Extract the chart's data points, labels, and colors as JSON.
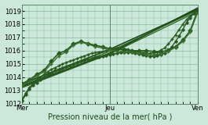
{
  "title": "",
  "xlabel": "Pression niveau de la mer( hPa )",
  "ylabel": "",
  "bg_color": "#cce8da",
  "plot_bg_color": "#cce8da",
  "grid_color": "#88b89a",
  "ylim": [
    1012,
    1019.5
  ],
  "xlim": [
    0,
    48
  ],
  "yticks": [
    1012,
    1013,
    1014,
    1015,
    1016,
    1017,
    1018,
    1019
  ],
  "xtick_positions": [
    0,
    24,
    48
  ],
  "xtick_labels": [
    "Mer",
    "Jeu",
    "Ven"
  ],
  "series": [
    {
      "x": [
        0,
        1,
        2,
        3,
        4,
        5,
        6,
        7,
        8,
        9,
        10,
        11,
        12,
        13,
        14,
        15,
        16,
        17,
        18,
        19,
        20,
        21,
        22,
        23,
        24,
        25,
        26,
        27,
        28,
        29,
        30,
        31,
        32,
        33,
        34,
        35,
        36,
        37,
        38,
        39,
        40,
        41,
        42,
        43,
        44,
        45,
        46,
        47,
        48
      ],
      "y": [
        1012.2,
        1012.7,
        1013.1,
        1013.4,
        1013.6,
        1013.8,
        1014.0,
        1014.2,
        1014.3,
        1014.5,
        1014.6,
        1014.7,
        1014.8,
        1014.9,
        1015.0,
        1015.1,
        1015.2,
        1015.3,
        1015.35,
        1015.4,
        1015.5,
        1015.55,
        1015.6,
        1015.65,
        1015.7,
        1015.75,
        1015.8,
        1015.85,
        1015.9,
        1015.9,
        1015.85,
        1015.8,
        1015.75,
        1015.7,
        1015.65,
        1015.6,
        1015.6,
        1015.65,
        1015.7,
        1015.8,
        1016.0,
        1016.3,
        1016.7,
        1017.1,
        1017.6,
        1018.1,
        1018.5,
        1018.8,
        1019.1
      ],
      "color": "#2a5a22",
      "lw": 1.0,
      "marker": "D",
      "ms": 1.8,
      "zorder": 3
    },
    {
      "x": [
        0,
        1,
        2,
        3,
        4,
        5,
        6,
        7,
        8,
        9,
        10,
        11,
        12,
        13,
        14,
        15,
        16,
        17,
        18,
        19,
        20,
        21,
        22,
        23,
        24,
        25,
        26,
        27,
        28,
        29,
        30,
        31,
        32,
        33,
        34,
        35,
        36,
        37,
        38,
        39,
        40,
        41,
        42,
        43,
        44,
        45,
        46,
        47,
        48
      ],
      "y": [
        1012.3,
        1012.8,
        1013.2,
        1013.5,
        1013.8,
        1014.0,
        1014.2,
        1014.4,
        1014.6,
        1014.7,
        1014.85,
        1015.0,
        1015.1,
        1015.2,
        1015.3,
        1015.4,
        1015.5,
        1015.6,
        1015.7,
        1015.8,
        1015.85,
        1015.9,
        1015.95,
        1016.0,
        1016.1,
        1016.15,
        1016.2,
        1016.2,
        1016.15,
        1016.1,
        1016.0,
        1015.95,
        1015.9,
        1015.85,
        1015.8,
        1015.8,
        1015.85,
        1015.9,
        1016.05,
        1016.2,
        1016.5,
        1016.85,
        1017.2,
        1017.6,
        1018.0,
        1018.35,
        1018.6,
        1018.85,
        1019.05
      ],
      "color": "#2a5a22",
      "lw": 1.0,
      "marker": "+",
      "ms": 3.0,
      "zorder": 3
    },
    {
      "x": [
        0,
        2,
        4,
        6,
        8,
        10,
        12,
        14,
        16,
        18,
        20,
        22,
        24,
        26,
        28,
        30,
        32,
        34,
        36,
        38,
        40,
        42,
        44,
        46,
        48
      ],
      "y": [
        1013.5,
        1013.8,
        1014.2,
        1014.5,
        1015.2,
        1015.8,
        1016.0,
        1016.5,
        1016.7,
        1016.55,
        1016.4,
        1016.3,
        1016.15,
        1016.1,
        1016.05,
        1016.0,
        1016.0,
        1016.0,
        1015.95,
        1015.9,
        1016.05,
        1016.3,
        1016.8,
        1017.5,
        1019.0
      ],
      "color": "#2a5a22",
      "lw": 1.2,
      "marker": "D",
      "ms": 2.5,
      "zorder": 4
    },
    {
      "x": [
        0,
        2,
        4,
        6,
        8,
        10,
        12,
        14,
        16,
        18,
        20,
        22,
        24,
        26,
        28,
        30,
        32,
        34,
        36,
        38,
        40,
        42,
        44,
        46,
        48
      ],
      "y": [
        1013.4,
        1013.7,
        1014.1,
        1014.4,
        1015.0,
        1015.6,
        1015.9,
        1016.4,
        1016.65,
        1016.5,
        1016.3,
        1016.2,
        1016.05,
        1015.95,
        1015.9,
        1015.85,
        1015.8,
        1015.75,
        1015.7,
        1015.75,
        1015.95,
        1016.25,
        1016.7,
        1017.4,
        1018.85
      ],
      "color": "#3a7030",
      "lw": 1.0,
      "marker": "+",
      "ms": 3.5,
      "zorder": 4
    },
    {
      "x": [
        0,
        24,
        48
      ],
      "y": [
        1013.3,
        1015.8,
        1019.2
      ],
      "color": "#1e4818",
      "lw": 1.5,
      "marker": null,
      "ms": 0,
      "zorder": 2
    },
    {
      "x": [
        0,
        24,
        48
      ],
      "y": [
        1013.5,
        1016.1,
        1019.1
      ],
      "color": "#1e4818",
      "lw": 1.2,
      "marker": null,
      "ms": 0,
      "zorder": 2
    },
    {
      "x": [
        0,
        24,
        48
      ],
      "y": [
        1013.4,
        1015.95,
        1019.05
      ],
      "color": "#2a6020",
      "lw": 0.9,
      "marker": null,
      "ms": 0,
      "zorder": 2
    },
    {
      "x": [
        0,
        24,
        48
      ],
      "y": [
        1013.2,
        1015.75,
        1018.95
      ],
      "color": "#2a6020",
      "lw": 0.9,
      "marker": null,
      "ms": 0,
      "zorder": 2
    }
  ]
}
